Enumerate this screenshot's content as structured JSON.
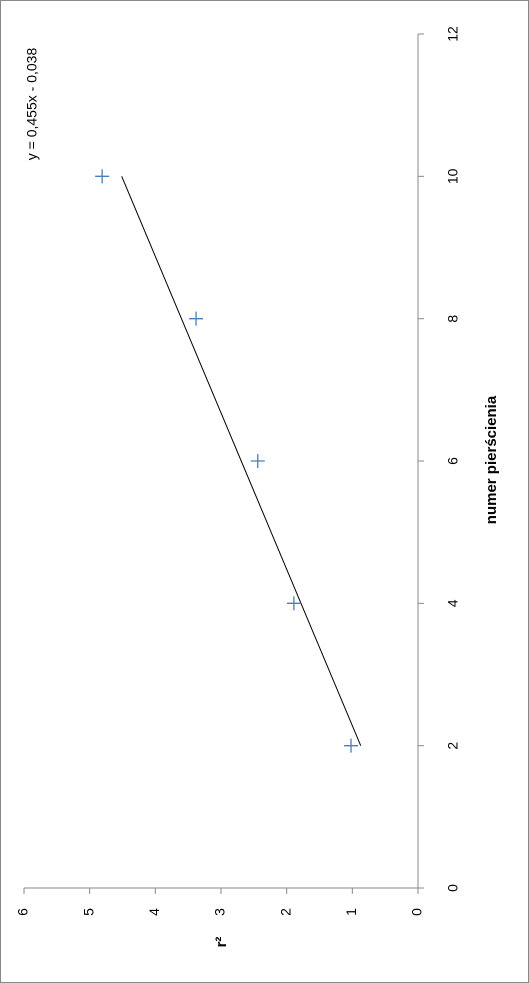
{
  "chart_data": {
    "type": "scatter",
    "x_label": "numer pierścienia",
    "y_label": "r²",
    "x": [
      2,
      4,
      6,
      8,
      10
    ],
    "series": [
      {
        "color": "#4a7ebb",
        "values": [
          1.02,
          1.89,
          2.44,
          3.38,
          4.81
        ]
      }
    ],
    "xlim": [
      0,
      12
    ],
    "xticks": [
      0,
      2,
      4,
      6,
      8,
      10,
      12
    ],
    "ylim": [
      0,
      6
    ],
    "yticks": [
      0,
      1,
      2,
      3,
      4,
      5,
      6
    ],
    "trendline": {
      "slope": 0.455,
      "intercept": -0.038,
      "label": "y = 0,455x - 0,038"
    }
  }
}
